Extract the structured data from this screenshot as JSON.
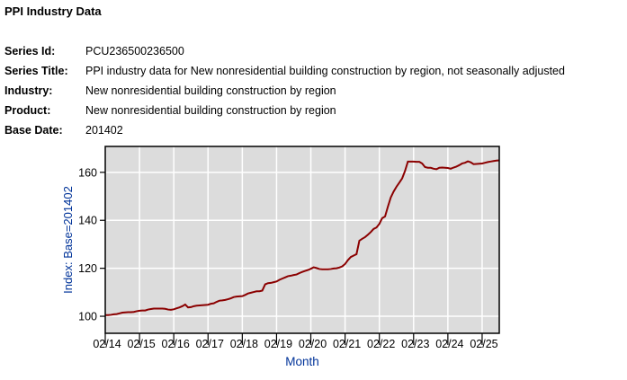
{
  "page": {
    "title": "PPI Industry Data",
    "fields": [
      {
        "label": "Series Id:",
        "value": "PCU236500236500"
      },
      {
        "label": "Series Title:",
        "value": "PPI industry data for New nonresidential building construction by region, not seasonally adjusted"
      },
      {
        "label": "Industry:",
        "value": "New nonresidential building construction by region"
      },
      {
        "label": "Product:",
        "value": "New nonresidential building construction by region"
      },
      {
        "label": "Base Date:",
        "value": "201402"
      }
    ]
  },
  "chart_data": {
    "type": "line",
    "title": "",
    "xlabel": "Month",
    "ylabel": "Index: Base=201402",
    "frequency": "monthly",
    "x_start": "2014-02",
    "x_end": "2025-08",
    "x_tick_labels": [
      "02/14",
      "02/15",
      "02/16",
      "02/17",
      "02/18",
      "02/19",
      "02/20",
      "02/21",
      "02/22",
      "02/23",
      "02/24",
      "02/25"
    ],
    "x_tick_month_indices": [
      0,
      12,
      24,
      36,
      48,
      60,
      72,
      84,
      96,
      108,
      120,
      132
    ],
    "y_ticks": [
      100,
      120,
      140,
      160
    ],
    "ylim": [
      92.9,
      170.8
    ],
    "grid": true,
    "legend": false,
    "colors": {
      "line": "#8B0000",
      "plot_background": "#DCDCDC",
      "grid_line": "#FFFFFF",
      "plot_border": "#000000",
      "axis_title": "#003399",
      "tick_label": "#000000"
    },
    "series": [
      {
        "name": "PCU236500236500",
        "values": [
          100.5,
          100.5,
          100.6,
          100.8,
          100.9,
          101.2,
          101.5,
          101.6,
          101.7,
          101.7,
          101.8,
          102.1,
          102.3,
          102.4,
          102.4,
          102.8,
          103.0,
          103.2,
          103.2,
          103.2,
          103.2,
          103.1,
          102.8,
          102.7,
          102.9,
          103.3,
          103.7,
          104.2,
          104.9,
          103.7,
          103.8,
          104.2,
          104.4,
          104.5,
          104.6,
          104.7,
          104.8,
          105.2,
          105.4,
          106.0,
          106.5,
          106.6,
          106.8,
          107.1,
          107.5,
          108.0,
          108.2,
          108.3,
          108.4,
          108.9,
          109.5,
          109.8,
          110.1,
          110.4,
          110.4,
          110.7,
          113.3,
          113.8,
          113.9,
          114.2,
          114.5,
          115.2,
          115.7,
          116.2,
          116.7,
          116.9,
          117.2,
          117.4,
          118.0,
          118.5,
          118.9,
          119.3,
          119.8,
          120.4,
          120.1,
          119.7,
          119.6,
          119.6,
          119.6,
          119.7,
          119.9,
          120.0,
          120.3,
          120.8,
          121.8,
          123.4,
          124.7,
          125.3,
          125.9,
          131.5,
          132.3,
          133.0,
          134.0,
          135.1,
          136.4,
          137.0,
          138.5,
          140.9,
          141.6,
          145.7,
          149.5,
          152.0,
          154.0,
          155.7,
          157.5,
          160.6,
          164.5,
          164.5,
          164.5,
          164.4,
          164.4,
          163.7,
          162.2,
          161.9,
          161.9,
          161.5,
          161.3,
          161.9,
          162.0,
          161.9,
          161.8,
          161.5,
          162.0,
          162.4,
          163.0,
          163.7,
          164.0,
          164.6,
          164.2,
          163.4,
          163.5,
          163.6,
          163.7,
          164.0,
          164.3,
          164.5,
          164.7,
          164.9,
          165.0
        ]
      }
    ]
  }
}
